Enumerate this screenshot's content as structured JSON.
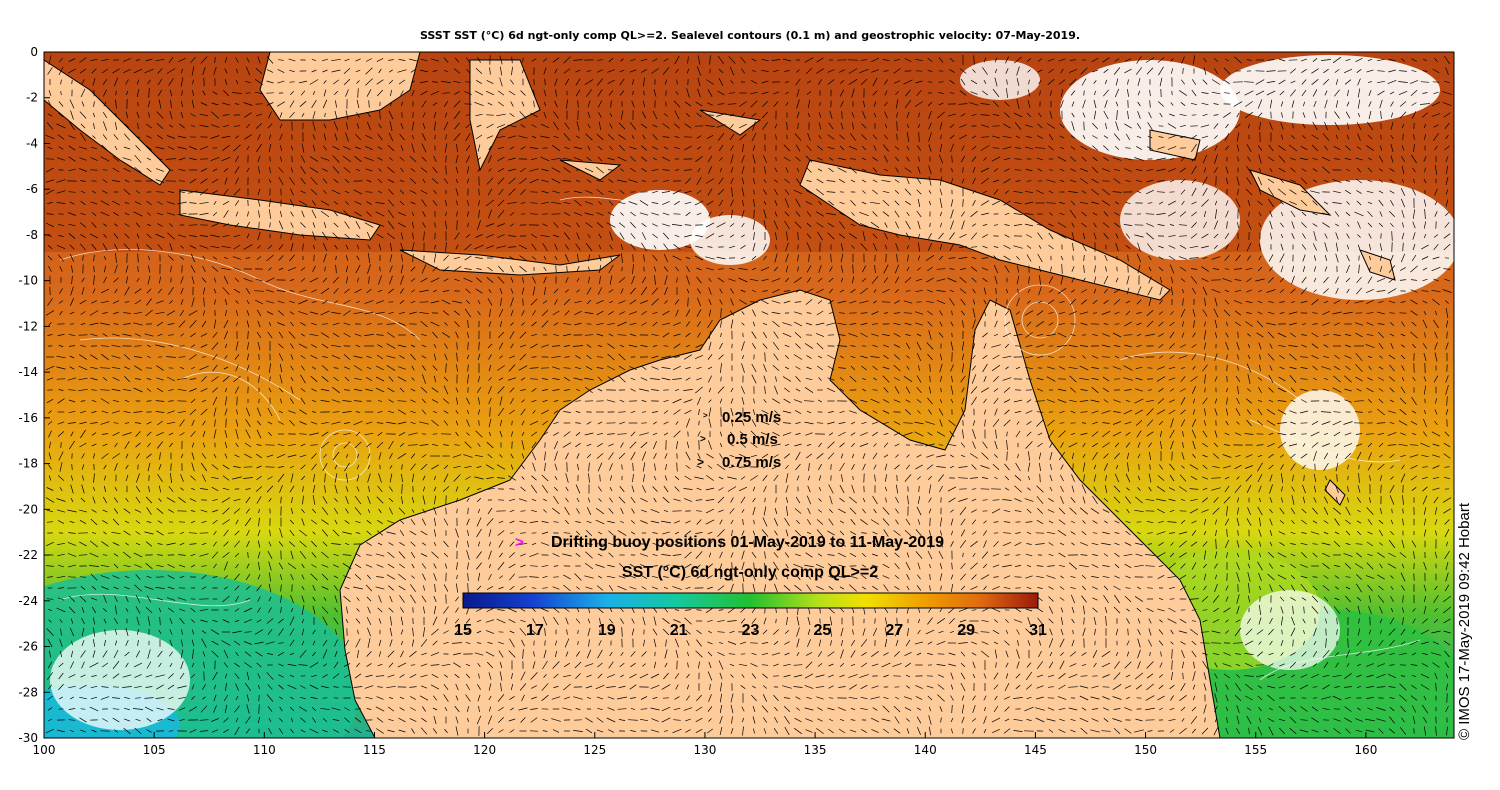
{
  "title": "SSST SST (°C) 6d ngt-only comp QL>=2. Sealevel contours (0.1 m) and geostrophic velocity: 07-May-2019.",
  "credit": "© IMOS 17-May-2019 09:42 Hobart",
  "axes": {
    "x_ticks": [
      100,
      105,
      110,
      115,
      120,
      125,
      130,
      135,
      140,
      145,
      150,
      155,
      160
    ],
    "y_ticks": [
      0,
      -2,
      -4,
      -6,
      -8,
      -10,
      -12,
      -14,
      -16,
      -18,
      -20,
      -22,
      -24,
      -26,
      -28,
      -30
    ],
    "lon_range": [
      100,
      164
    ],
    "lat_range": [
      -30,
      0
    ]
  },
  "velocity_legend": [
    {
      "label": "0.25 m/s",
      "speed": 0.25
    },
    {
      "label": "0.5 m/s",
      "speed": 0.5
    },
    {
      "label": "0.75 m/s",
      "speed": 0.75
    }
  ],
  "buoy_legend": {
    "symbol": ">",
    "label": "Drifting buoy positions 01-May-2019 to 11-May-2019",
    "color": "#ff00ff"
  },
  "colorbar": {
    "title": "SST (°C) 6d ngt-only comp QL>=2",
    "ticks": [
      15,
      17,
      19,
      21,
      23,
      25,
      27,
      29,
      31
    ],
    "range": [
      15,
      31
    ]
  },
  "colors": {
    "land": "#fecb9b",
    "no_data": "#ffffff",
    "coast": "#000000",
    "contour": "#ffffff"
  }
}
